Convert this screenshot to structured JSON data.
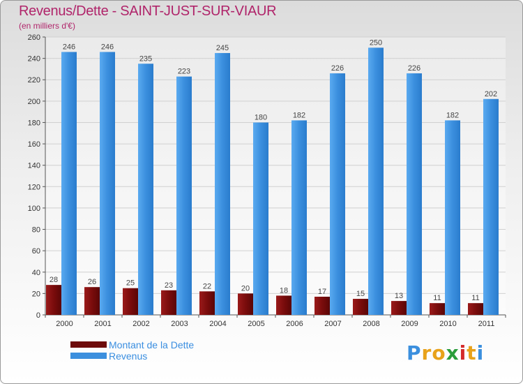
{
  "chart_data": {
    "type": "bar",
    "title": "Revenus/Dette - SAINT-JUST-SUR-VIAUR",
    "subtitle": "(en milliers d'€)",
    "categories": [
      "2000",
      "2001",
      "2002",
      "2003",
      "2004",
      "2005",
      "2006",
      "2007",
      "2008",
      "2009",
      "2010",
      "2011"
    ],
    "series": [
      {
        "name": "Montant de la Dette",
        "color": "#7a0c0c",
        "values": [
          28,
          26,
          25,
          23,
          22,
          20,
          18,
          17,
          15,
          13,
          11,
          11
        ]
      },
      {
        "name": "Revenus",
        "color": "#3b8fde",
        "values": [
          246,
          246,
          235,
          223,
          245,
          180,
          182,
          226,
          250,
          226,
          182,
          202
        ]
      }
    ],
    "ylim": [
      0,
      260
    ],
    "yticks": [
      0,
      20,
      40,
      60,
      80,
      100,
      120,
      140,
      160,
      180,
      200,
      220,
      240,
      260
    ],
    "grid": true,
    "legend_position": "bottom-left"
  },
  "logo": {
    "letters": [
      "P",
      "r",
      "o",
      "x",
      "i",
      "t",
      "i"
    ],
    "colors": [
      "#3b8fde",
      "#e8a21a",
      "#e8a21a",
      "#2a9d3a",
      "#d42a2a",
      "#e8a21a",
      "#3b8fde"
    ]
  }
}
